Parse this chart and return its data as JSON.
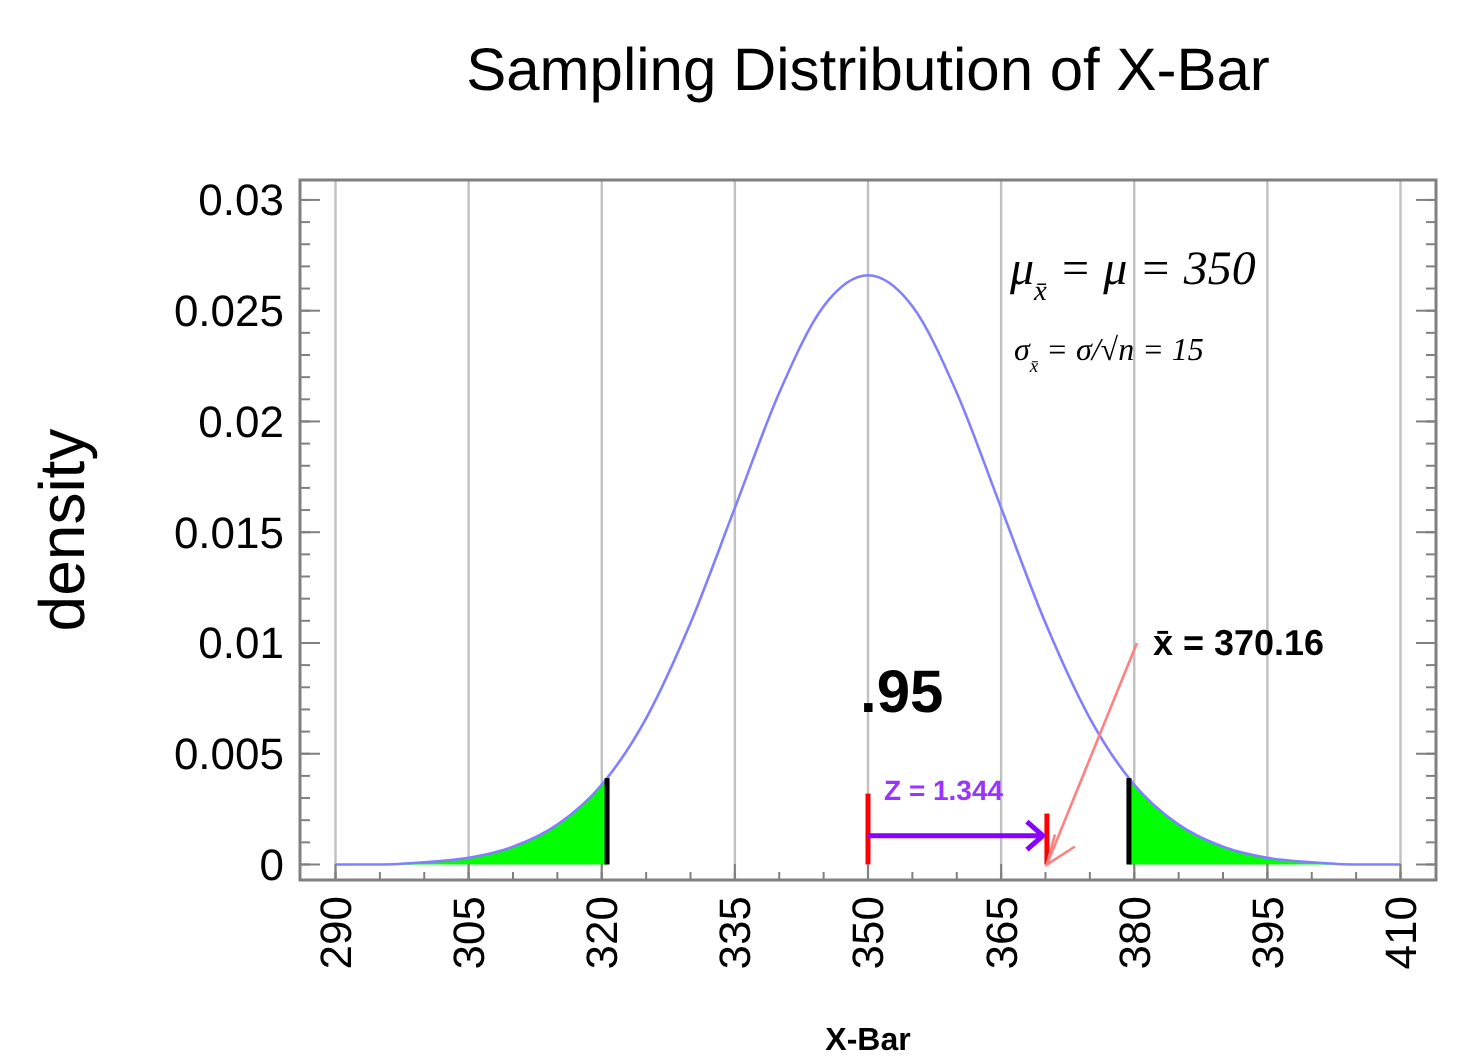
{
  "chart_data": {
    "type": "line",
    "title": "Sampling Distribution of X-Bar",
    "xlabel": "X-Bar",
    "ylabel": "density",
    "xlim": [
      286,
      414
    ],
    "xticks": [
      290,
      305,
      320,
      335,
      350,
      365,
      380,
      395,
      410
    ],
    "ylim": [
      -0.0007,
      0.0309
    ],
    "yticks": [
      0,
      0.005,
      0.01,
      0.015,
      0.02,
      0.025,
      0.03
    ],
    "grid": "x",
    "marker": "none",
    "line_style": "solid",
    "series": [
      {
        "type": "area",
        "color": "#00ff00",
        "x": [
          290,
          295,
          300,
          305,
          310,
          315,
          320,
          320.6
        ],
        "values": [
          0,
          0,
          0.0001,
          0.0003,
          0.0008,
          0.0018,
          0.0036,
          0.0039
        ]
      },
      {
        "type": "area",
        "color": "#00ff00",
        "x": [
          379.4,
          380,
          385,
          390,
          395,
          400,
          405,
          410
        ],
        "values": [
          0.0039,
          0.0036,
          0.0018,
          0.0008,
          0.0003,
          0.0001,
          0,
          0
        ]
      },
      {
        "color": "#8080ff",
        "x": [
          290,
          295,
          300,
          305,
          310,
          315,
          320,
          325,
          330,
          335,
          340,
          345,
          350,
          355,
          360,
          365,
          370,
          375,
          380,
          385,
          390,
          395,
          400,
          405,
          410
        ],
        "values": [
          0,
          0,
          0.0001,
          0.0003,
          0.0008,
          0.0018,
          0.0036,
          0.0066,
          0.0109,
          0.0161,
          0.0213,
          0.0252,
          0.0266,
          0.0252,
          0.0213,
          0.0161,
          0.0109,
          0.0066,
          0.0036,
          0.0018,
          0.0008,
          0.0003,
          0.0001,
          0,
          0
        ]
      },
      {
        "type": "line",
        "color": "#000000",
        "x": [
          320.6,
          320.6
        ],
        "values": [
          0,
          0.0039
        ]
      },
      {
        "type": "line",
        "color": "#000000",
        "x": [
          379.4,
          379.4
        ],
        "values": [
          0,
          0.0039
        ]
      },
      {
        "type": "line",
        "color": "#ff0000",
        "x": [
          350,
          350
        ],
        "values": [
          0,
          0.0032
        ]
      },
      {
        "type": "line",
        "color": "#ff0000",
        "x": [
          370.16,
          370.16
        ],
        "values": [
          0,
          0.0023
        ]
      }
    ],
    "annotations": [
      "μ$_{x̄}$ = μ = 350",
      "σ$_{x̄}$ = σ/√n = 15",
      ".95",
      {
        "text": "Z = 1.344",
        "x": 370.16,
        "y": 0.0013
      },
      {
        "text": "x̄ = 370.16",
        "x": 370.16,
        "y": 0
      }
    ]
  }
}
